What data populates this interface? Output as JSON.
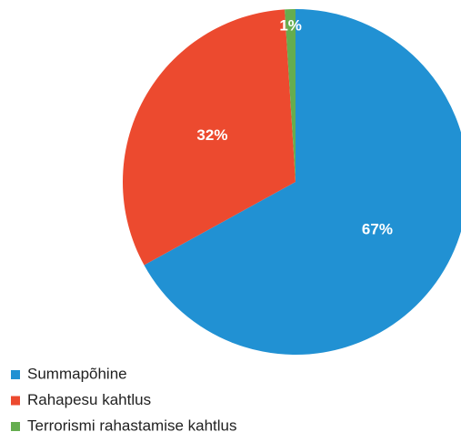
{
  "chart_data": {
    "type": "pie",
    "categories": [
      "Summapõhine",
      "Rahapesu kahtlus",
      "Terrorismi rahastamise kahtlus"
    ],
    "values": [
      67,
      32,
      1
    ],
    "value_labels": [
      "67%",
      "32%",
      "1%"
    ],
    "colors": [
      "#2191d3",
      "#ec4a2f",
      "#65ad4f"
    ]
  }
}
